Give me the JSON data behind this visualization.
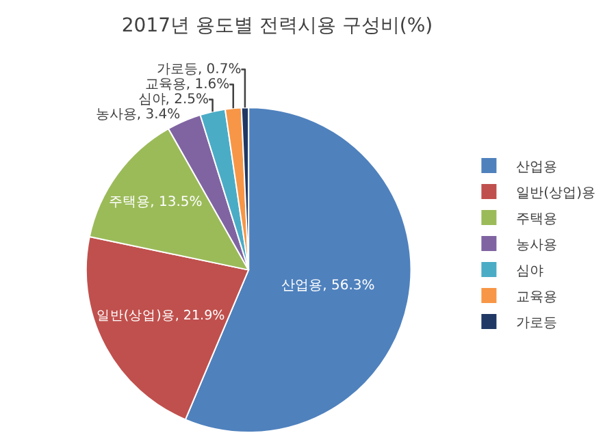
{
  "chart_data": {
    "type": "pie",
    "title": "2017년 용도별 전력시용 구성비(%)",
    "categories": [
      "산업용",
      "일반(상업)용",
      "주택용",
      "농사용",
      "심야",
      "교육용",
      "가로등"
    ],
    "values": [
      56.3,
      21.9,
      13.5,
      3.4,
      2.5,
      1.6,
      0.7
    ],
    "value_labels": [
      "산업용, 56.3%",
      "일반(상업)용, 21.9%",
      "주택용, 13.5%",
      "농사용, 3.4%",
      "심야, 2.5%",
      "교육용, 1.6%",
      "가로등, 0.7%"
    ],
    "colors": [
      "#4f81bd",
      "#c0504d",
      "#9bbb59",
      "#8064a2",
      "#4bacc6",
      "#f79646",
      "#1f3864"
    ],
    "legend": "right"
  }
}
